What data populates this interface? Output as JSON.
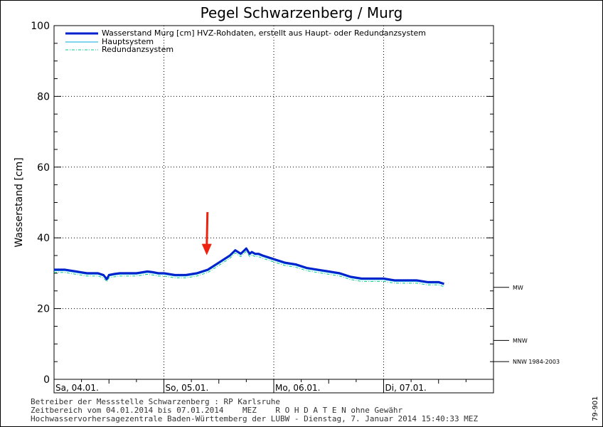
{
  "chart_data": {
    "type": "line",
    "title": "Pegel Schwarzenberg / Murg",
    "ylabel": "Wasserstand [cm]",
    "ylim": [
      0,
      100
    ],
    "yticks": [
      0,
      20,
      40,
      60,
      80,
      100
    ],
    "xlim": [
      0,
      4
    ],
    "x_unit": "days since 04.01.2014 00:00",
    "day_labels": [
      "Sa, 04.01.",
      "So, 05.01.",
      "Mo, 06.01.",
      "Di, 07.01."
    ],
    "grid": true,
    "legend": {
      "position": "top-left",
      "entries": [
        {
          "label": "Wasserstand Murg [cm] HVZ-Rohdaten, erstellt aus Haupt- oder Redundanzsystem",
          "style": "thick",
          "color": "#0022cc"
        },
        {
          "label": "Hauptsystem",
          "style": "thin",
          "color": "#00aadd"
        },
        {
          "label": "Redundanzsystem",
          "style": "dashdot",
          "color": "#00cc88"
        }
      ]
    },
    "thresholds": [
      {
        "label": "MW",
        "value": 26
      },
      {
        "label": "MNW",
        "value": 11
      },
      {
        "label": "NNW 1984-2003",
        "value": 5
      }
    ],
    "series": [
      {
        "name": "Wasserstand Murg [cm] HVZ-Rohdaten, erstellt aus Haupt- oder Redundanzsystem",
        "x": [
          0,
          0.1,
          0.2,
          0.3,
          0.4,
          0.45,
          0.48,
          0.5,
          0.55,
          0.6,
          0.75,
          0.85,
          0.9,
          0.95,
          1.0,
          1.1,
          1.2,
          1.3,
          1.4,
          1.5,
          1.6,
          1.65,
          1.7,
          1.75,
          1.78,
          1.8,
          1.83,
          1.86,
          1.9,
          1.95,
          2.0,
          2.1,
          2.2,
          2.3,
          2.4,
          2.5,
          2.6,
          2.7,
          2.8,
          2.9,
          3.0,
          3.1,
          3.2,
          3.3,
          3.4,
          3.5,
          3.55
        ],
        "y": [
          31,
          31,
          30.5,
          30,
          30,
          29.5,
          28.3,
          29.5,
          29.8,
          30,
          30,
          30.5,
          30.3,
          30,
          30,
          29.5,
          29.5,
          30,
          31,
          33,
          35,
          36.5,
          35.5,
          37,
          35.5,
          36,
          35.5,
          35.5,
          35,
          34.5,
          34,
          33,
          32.5,
          31.5,
          31,
          30.5,
          30,
          29,
          28.5,
          28.5,
          28.5,
          28,
          28,
          28,
          27.5,
          27.5,
          27
        ]
      },
      {
        "name": "Hauptsystem",
        "x": [
          0,
          0.1,
          0.2,
          0.3,
          0.4,
          0.45,
          0.48,
          0.5,
          0.55,
          0.6,
          0.75,
          0.85,
          0.9,
          0.95,
          1.0,
          1.1,
          1.2,
          1.3,
          1.4,
          1.5,
          1.6,
          1.65,
          1.7,
          1.75,
          1.78,
          1.8,
          1.83,
          1.86,
          1.9,
          1.95,
          2.0,
          2.1,
          2.2,
          2.3,
          2.4,
          2.5,
          2.6,
          2.7,
          2.8,
          2.9,
          3.0,
          3.1,
          3.2,
          3.3,
          3.4,
          3.5,
          3.55
        ],
        "y": [
          30.7,
          30.7,
          30.2,
          29.7,
          29.7,
          29.2,
          28,
          29.2,
          29.5,
          29.7,
          29.7,
          30.2,
          30,
          29.7,
          29.7,
          29.2,
          29.2,
          29.7,
          30.7,
          32.7,
          34.7,
          36.2,
          35.2,
          36.7,
          35.2,
          35.7,
          35.2,
          35.2,
          34.7,
          34.2,
          33.7,
          32.7,
          32.2,
          31.2,
          30.7,
          30.2,
          29.7,
          28.7,
          28.2,
          28.2,
          28.2,
          27.7,
          27.7,
          27.7,
          27.2,
          27.2,
          26.7
        ]
      },
      {
        "name": "Redundanzsystem",
        "x": [
          0,
          0.1,
          0.2,
          0.3,
          0.4,
          0.45,
          0.48,
          0.5,
          0.55,
          0.6,
          0.75,
          0.85,
          0.9,
          0.95,
          1.0,
          1.1,
          1.2,
          1.3,
          1.4,
          1.5,
          1.6,
          1.65,
          1.7,
          1.75,
          1.78,
          1.8,
          1.83,
          1.86,
          1.9,
          1.95,
          2.0,
          2.1,
          2.2,
          2.3,
          2.4,
          2.5,
          2.6,
          2.7,
          2.8,
          2.9,
          3.0,
          3.1,
          3.2,
          3.3,
          3.4,
          3.5,
          3.55
        ],
        "y": [
          30.2,
          30.2,
          29.7,
          29.2,
          29.2,
          28.7,
          27.6,
          28.7,
          29,
          29.2,
          29.2,
          29.7,
          29.5,
          29.2,
          29.2,
          28.7,
          28.7,
          29.2,
          30.2,
          32.2,
          34.2,
          35.7,
          34.7,
          36.2,
          34.7,
          35.2,
          34.7,
          34.7,
          34.2,
          33.7,
          33.2,
          32.2,
          31.7,
          30.7,
          30.2,
          29.7,
          29.2,
          28.2,
          27.7,
          27.7,
          27.7,
          27.2,
          27.2,
          27.2,
          26.7,
          26.7,
          26.2
        ]
      }
    ],
    "annotation": {
      "type": "arrow",
      "color": "#ee2211",
      "x": 1.39,
      "y": 35.5
    }
  },
  "footer": {
    "line1": "Betreiber der Messstelle Schwarzenberg : RP Karlsruhe",
    "line2": "Zeitbereich vom 04.01.2014 bis 07.01.2014    MEZ    R O H D A T E N ohne Gewähr",
    "line3": "Hochwasservorhersagezentrale Baden-Württemberg der LUBW - Dienstag, 7. Januar 2014 15:40:33 MEZ"
  },
  "side_code": "79-901"
}
